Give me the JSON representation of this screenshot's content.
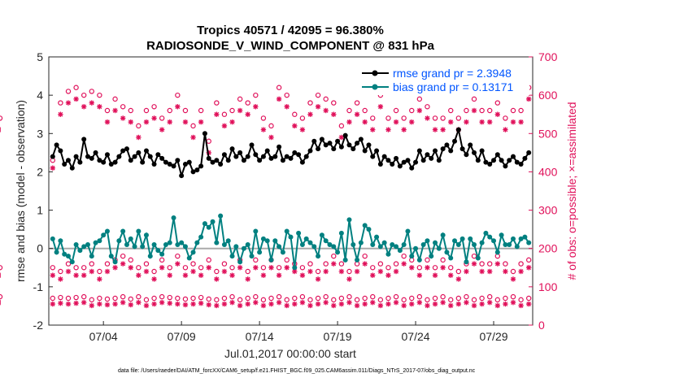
{
  "chart_data": {
    "type": "line",
    "title": "Tropics 40571 / 42095 = 96.380%",
    "subtitle": "RADIOSONDE_V_WIND_COMPONENT @ 831 hPa",
    "xlabel": "Jul.01,2017 00:00:00 start",
    "ylabel": "rmse and bias (model - observation)",
    "ylabel_right": "# of obs: o=possible; ×=assimilated",
    "ylim": [
      -2,
      5
    ],
    "ylim_right": [
      0,
      700
    ],
    "yticks": [
      "-2",
      "-1",
      "0",
      "1",
      "2",
      "3",
      "4",
      "5"
    ],
    "yticks_right": [
      "0",
      "100",
      "200",
      "300",
      "400",
      "500",
      "600",
      "700"
    ],
    "xticks": [
      {
        "label": "07/04",
        "day": 3.5
      },
      {
        "label": "07/09",
        "day": 8.5
      },
      {
        "label": "07/14",
        "day": 13.5
      },
      {
        "label": "07/19",
        "day": 18.5
      },
      {
        "label": "07/24",
        "day": 23.5
      },
      {
        "label": "07/29",
        "day": 28.5
      }
    ],
    "xlim": [
      0,
      31
    ],
    "zero_line": 0,
    "footnote": "data file: /Users/raeder/DAI/ATM_forcXX/CAM6_setup/f.e21.FHIST_BGC.f09_025.CAM6assim.011/Diags_NTrS_2017-07/obs_diag_output.nc",
    "legend": [
      {
        "name": "rmse grand pr = 2.3948",
        "color": "#000000"
      },
      {
        "name": "bias grand pr = 0.13171",
        "color": "#008080"
      }
    ],
    "colors": {
      "rmse": "#000000",
      "bias": "#008080",
      "counts": "#e0105a",
      "zero": "#aaaaaa"
    },
    "x": [
      0.25,
      0.5,
      0.75,
      1.0,
      1.25,
      1.5,
      1.75,
      2.0,
      2.25,
      2.5,
      2.75,
      3.0,
      3.25,
      3.5,
      3.75,
      4.0,
      4.25,
      4.5,
      4.75,
      5.0,
      5.25,
      5.5,
      5.75,
      6.0,
      6.25,
      6.5,
      6.75,
      7.0,
      7.25,
      7.5,
      7.75,
      8.0,
      8.25,
      8.5,
      8.75,
      9.0,
      9.25,
      9.5,
      9.75,
      10.0,
      10.25,
      10.5,
      10.75,
      11.0,
      11.25,
      11.5,
      11.75,
      12.0,
      12.25,
      12.5,
      12.75,
      13.0,
      13.25,
      13.5,
      13.75,
      14.0,
      14.25,
      14.5,
      14.75,
      15.0,
      15.25,
      15.5,
      15.75,
      16.0,
      16.25,
      16.5,
      16.75,
      17.0,
      17.25,
      17.5,
      17.75,
      18.0,
      18.25,
      18.5,
      18.75,
      19.0,
      19.25,
      19.5,
      19.75,
      20.0,
      20.25,
      20.5,
      20.75,
      21.0,
      21.25,
      21.5,
      21.75,
      22.0,
      22.25,
      22.5,
      22.75,
      23.0,
      23.25,
      23.5,
      23.75,
      24.0,
      24.25,
      24.5,
      24.75,
      25.0,
      25.25,
      25.5,
      25.75,
      26.0,
      26.25,
      26.5,
      26.75,
      27.0,
      27.25,
      27.5,
      27.75,
      28.0,
      28.25,
      28.5,
      28.75,
      29.0,
      29.25,
      29.5,
      29.75,
      30.0,
      30.25,
      30.5,
      30.75
    ],
    "series": [
      {
        "name": "rmse",
        "values": [
          2.4,
          2.7,
          2.55,
          2.2,
          2.3,
          2.1,
          2.4,
          2.25,
          2.85,
          2.4,
          2.35,
          2.5,
          2.3,
          2.25,
          2.45,
          2.2,
          2.25,
          2.4,
          2.55,
          2.6,
          2.3,
          2.4,
          2.5,
          2.25,
          2.55,
          2.4,
          2.2,
          2.45,
          2.35,
          2.25,
          2.2,
          2.15,
          2.3,
          1.9,
          2.2,
          2.25,
          2.0,
          2.05,
          2.15,
          3.0,
          2.35,
          2.25,
          2.3,
          2.2,
          2.45,
          2.3,
          2.6,
          2.4,
          2.5,
          2.3,
          2.4,
          2.7,
          2.45,
          2.3,
          2.4,
          2.55,
          2.35,
          2.4,
          2.65,
          2.3,
          2.4,
          2.35,
          2.5,
          2.45,
          2.25,
          2.4,
          2.55,
          2.8,
          2.6,
          2.85,
          2.7,
          2.75,
          2.6,
          2.8,
          2.65,
          2.95,
          2.7,
          2.6,
          2.75,
          2.85,
          2.55,
          2.7,
          2.4,
          2.55,
          2.2,
          2.4,
          2.3,
          2.2,
          2.35,
          2.15,
          2.25,
          2.3,
          2.1,
          2.25,
          2.55,
          2.3,
          2.45,
          2.35,
          2.55,
          2.3,
          2.6,
          2.7,
          2.55,
          2.8,
          3.1,
          2.6,
          2.45,
          2.7,
          2.5,
          2.3,
          2.55,
          2.25,
          2.2,
          2.3,
          2.45,
          2.3,
          2.15,
          2.3,
          2.4,
          2.25,
          2.2,
          2.35,
          2.5
        ]
      },
      {
        "name": "bias",
        "values": [
          0.25,
          -0.1,
          0.2,
          -0.15,
          -0.2,
          -0.35,
          0.1,
          -0.05,
          0.05,
          0.1,
          -0.2,
          0.15,
          0.2,
          0.35,
          0.45,
          -0.2,
          -0.35,
          0.2,
          0.45,
          0.1,
          0.25,
          0.05,
          0.45,
          0.05,
          0.35,
          -0.2,
          0.1,
          -0.05,
          -0.15,
          0.1,
          0.15,
          0.8,
          0.1,
          0.15,
          0.05,
          -0.25,
          -0.1,
          0.15,
          0.3,
          0.65,
          0.55,
          0.7,
          0.15,
          0.85,
          0.1,
          0.2,
          -0.2,
          0.05,
          -0.35,
          0.0,
          0.1,
          -0.2,
          0.45,
          -0.1,
          0.25,
          0.2,
          -0.3,
          0.2,
          0.05,
          -0.1,
          0.45,
          0.3,
          -0.5,
          0.4,
          0.1,
          0.25,
          0.15,
          0.05,
          -0.2,
          0.35,
          0.2,
          0.1,
          0.05,
          -0.1,
          0.4,
          -0.3,
          0.75,
          0.1,
          -0.3,
          0.15,
          0.6,
          0.5,
          0.1,
          0.3,
          0.05,
          0.15,
          -0.15,
          0.1,
          0.05,
          -0.05,
          0.1,
          0.45,
          -0.2,
          0.0,
          -0.3,
          0.1,
          0.2,
          -0.2,
          0.15,
          0.0,
          0.35,
          -0.1,
          -0.25,
          0.2,
          0.1,
          0.25,
          -0.35,
          0.25,
          0.1,
          -0.25,
          0.15,
          0.4,
          0.3,
          0.2,
          -0.1,
          0.35,
          0.1,
          0.1,
          0.25,
          0.05,
          0.25,
          0.3,
          0.15
        ]
      }
    ],
    "obs_possible_high": [
      430,
      550,
      580,
      570,
      610,
      580,
      620,
      560,
      600,
      570,
      610,
      540,
      600,
      580,
      560,
      620,
      590,
      600,
      570,
      610,
      560,
      580,
      520,
      600,
      560,
      620,
      570,
      600,
      540,
      590,
      560,
      640,
      600,
      560,
      560,
      540,
      520,
      540,
      560,
      520,
      480,
      560,
      580,
      560,
      550,
      530,
      560,
      610,
      590,
      550,
      580,
      540,
      600,
      560,
      540,
      560,
      520,
      580,
      620,
      560,
      600,
      560,
      550,
      610,
      540,
      520,
      580,
      520,
      600,
      560,
      590,
      520,
      580,
      560,
      520,
      540,
      560,
      600,
      580,
      540,
      560,
      560,
      540,
      520,
      600,
      580,
      540,
      520,
      560,
      580,
      540,
      540,
      560,
      520,
      590,
      540,
      570,
      600,
      540,
      560,
      540,
      520,
      560,
      580,
      540,
      520,
      560,
      580,
      590,
      540,
      560,
      520,
      560,
      540,
      580,
      560,
      540,
      600,
      560,
      540,
      560,
      580,
      620,
      560,
      540
    ],
    "obs_assimilated_high": [
      410,
      520,
      550,
      530,
      580,
      550,
      590,
      530,
      570,
      540,
      580,
      510,
      570,
      550,
      530,
      590,
      560,
      570,
      540,
      580,
      530,
      550,
      490,
      570,
      530,
      590,
      540,
      570,
      510,
      560,
      530,
      610,
      570,
      530,
      530,
      510,
      490,
      510,
      530,
      490,
      450,
      530,
      550,
      530,
      520,
      500,
      530,
      580,
      560,
      520,
      550,
      510,
      570,
      530,
      510,
      530,
      490,
      550,
      590,
      530,
      570,
      530,
      520,
      580,
      510,
      490,
      550,
      490,
      570,
      530,
      560,
      490,
      550,
      530,
      490,
      510,
      530,
      570,
      550,
      510,
      530,
      530,
      510,
      490,
      570,
      550,
      510,
      490,
      530,
      550,
      510,
      510,
      530,
      490,
      560,
      510,
      540,
      570,
      510,
      530,
      510,
      490,
      530,
      550,
      510,
      490,
      530,
      550,
      560,
      510,
      530,
      490,
      530,
      510,
      550,
      530,
      510,
      570,
      530,
      510,
      530,
      550,
      590,
      530,
      510
    ],
    "obs_possible_mid": [
      150,
      170,
      140,
      190,
      160,
      180,
      150,
      170,
      150,
      180,
      160,
      170,
      140,
      190,
      160,
      150,
      170,
      160,
      180,
      150,
      170,
      190,
      150,
      170,
      160,
      150,
      140,
      180,
      170,
      160,
      150,
      170,
      180,
      160,
      150,
      170,
      160,
      180,
      150,
      160,
      170,
      150,
      140,
      170,
      160,
      180,
      150,
      160,
      170,
      150,
      140,
      160,
      170,
      180,
      150,
      160,
      170,
      140,
      150,
      160,
      170,
      150,
      160,
      180,
      150,
      170,
      160,
      150,
      140,
      170,
      160,
      150,
      180,
      170,
      160,
      150,
      140,
      170,
      160,
      150,
      180,
      160,
      150,
      170,
      160,
      140,
      150,
      170,
      160,
      150,
      180,
      150,
      170,
      160,
      150,
      140,
      170,
      160,
      150,
      180,
      170,
      160,
      150,
      170,
      140,
      150,
      160,
      170,
      180,
      150,
      160,
      170,
      160,
      150,
      180,
      170,
      160,
      150,
      140,
      170,
      160,
      150,
      170,
      160,
      150
    ],
    "obs_assimilated_mid": [
      130,
      150,
      120,
      170,
      140,
      160,
      130,
      150,
      130,
      160,
      140,
      150,
      120,
      170,
      140,
      130,
      150,
      140,
      160,
      130,
      150,
      170,
      130,
      150,
      140,
      130,
      120,
      160,
      150,
      140,
      130,
      150,
      160,
      140,
      130,
      150,
      140,
      160,
      130,
      140,
      150,
      130,
      120,
      150,
      140,
      160,
      130,
      140,
      150,
      130,
      120,
      140,
      150,
      160,
      130,
      140,
      150,
      120,
      130,
      140,
      150,
      130,
      140,
      160,
      130,
      150,
      140,
      130,
      120,
      150,
      140,
      130,
      160,
      150,
      140,
      130,
      120,
      150,
      140,
      130,
      160,
      140,
      130,
      150,
      140,
      120,
      130,
      150,
      140,
      130,
      160,
      130,
      150,
      140,
      130,
      120,
      150,
      140,
      130,
      160,
      150,
      140,
      130,
      150,
      120,
      130,
      140,
      150,
      160,
      130,
      140,
      150,
      140,
      130,
      160,
      150,
      140,
      130,
      120,
      150,
      140,
      130,
      150,
      140,
      130
    ],
    "obs_possible_low": [
      70,
      75,
      72,
      68,
      70,
      66,
      72,
      70,
      74,
      68,
      66,
      72,
      70,
      76,
      68,
      72,
      70,
      66,
      74,
      70,
      68,
      72,
      74,
      70,
      66,
      72,
      70,
      68,
      74,
      70,
      72,
      66,
      70,
      72,
      68,
      74,
      70,
      66,
      72,
      70,
      68,
      74,
      66,
      72,
      70,
      68,
      74,
      70,
      66,
      72,
      70,
      68,
      74,
      70,
      66,
      72,
      70,
      68,
      74,
      70,
      66,
      72,
      70,
      68,
      74,
      70,
      66,
      72,
      70,
      68,
      74,
      70,
      66,
      72,
      70,
      68,
      74,
      70,
      66,
      72,
      70,
      68,
      74,
      70,
      66,
      72,
      70,
      68,
      74,
      70,
      66,
      72,
      70,
      68,
      74,
      70,
      66,
      72,
      70,
      68,
      74,
      70,
      66,
      72,
      70,
      68,
      74,
      70,
      66,
      72,
      70,
      68,
      74,
      70,
      66,
      72,
      70,
      68,
      74,
      70,
      66,
      72,
      70,
      68,
      74
    ],
    "obs_assimilated_low": [
      55,
      60,
      57,
      53,
      55,
      51,
      57,
      55,
      59,
      53,
      51,
      57,
      55,
      61,
      53,
      57,
      55,
      51,
      59,
      55,
      53,
      57,
      59,
      55,
      51,
      57,
      55,
      53,
      59,
      55,
      57,
      51,
      55,
      57,
      53,
      59,
      55,
      51,
      57,
      55,
      53,
      59,
      51,
      57,
      55,
      53,
      59,
      55,
      51,
      57,
      55,
      53,
      59,
      55,
      51,
      57,
      55,
      53,
      59,
      55,
      51,
      57,
      55,
      53,
      59,
      55,
      51,
      57,
      55,
      53,
      59,
      55,
      51,
      57,
      55,
      53,
      59,
      55,
      51,
      57,
      55,
      53,
      59,
      55,
      51,
      57,
      55,
      53,
      59,
      55,
      51,
      57,
      55,
      53,
      59,
      55,
      51,
      57,
      55,
      53,
      59,
      55,
      51,
      57,
      55,
      53,
      59,
      55,
      51,
      57,
      55,
      53,
      59,
      55,
      51,
      57,
      55,
      53,
      59,
      55,
      51,
      57,
      55,
      53,
      59
    ]
  }
}
